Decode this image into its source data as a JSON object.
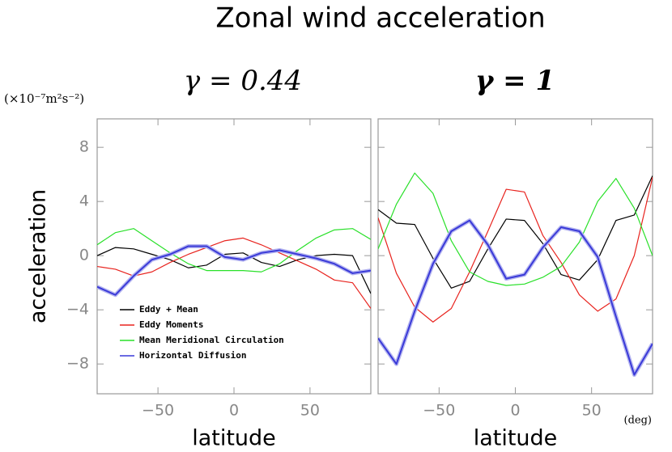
{
  "title": "Zonal wind acceleration",
  "unit_label": "(×10⁻⁷m²s⁻²)",
  "x_unit": "(deg)",
  "chart_data": [
    {
      "type": "line",
      "title": "γ = 0.44",
      "xlabel": "latitude",
      "ylabel": "acceleration",
      "x": [
        -90,
        -78,
        -66,
        -54,
        -42,
        -30,
        -18,
        -6,
        6,
        18,
        30,
        42,
        54,
        66,
        78,
        90
      ],
      "xlim": [
        -90,
        90
      ],
      "ylim": [
        -10.2,
        10.1
      ],
      "xticks": [
        {
          "value": -50,
          "label": "−50"
        },
        0,
        50
      ],
      "yticks": [
        {
          "value": -8,
          "label": "−8"
        },
        {
          "value": -4,
          "label": "−4"
        },
        0,
        4,
        8
      ],
      "legend": "lower left",
      "series": [
        {
          "name": "Eddy + Mean",
          "color": "#000000",
          "values": [
            0,
            0.6,
            0.5,
            0.1,
            -0.3,
            -0.9,
            -0.7,
            0.1,
            0.2,
            -0.5,
            -0.8,
            -0.3,
            0,
            0.1,
            0,
            -2.8
          ]
        },
        {
          "name": "Eddy Moments",
          "color": "#e8231e",
          "values": [
            -0.8,
            -1.0,
            -1.5,
            -1.2,
            -0.5,
            0.1,
            0.6,
            1.1,
            1.3,
            0.8,
            0.2,
            -0.4,
            -1.0,
            -1.8,
            -2.0,
            -3.9
          ]
        },
        {
          "name": "Mean Meridional Circulation",
          "color": "#29e029",
          "values": [
            0.8,
            1.7,
            2.0,
            1.1,
            0.2,
            -0.6,
            -1.1,
            -1.1,
            -1.1,
            -1.2,
            -0.6,
            0.4,
            1.3,
            1.9,
            2.0,
            1.2
          ]
        },
        {
          "name": "Horizontal Diffusion",
          "color": "#3a3ad8",
          "values": [
            -2.3,
            -2.9,
            -1.5,
            -0.3,
            0.1,
            0.7,
            0.7,
            -0.1,
            -0.3,
            0.2,
            0.4,
            0.1,
            -0.2,
            -0.6,
            -1.3,
            -1.1
          ]
        }
      ]
    },
    {
      "type": "line",
      "title": "γ = 1",
      "xlabel": "latitude",
      "x": [
        -90,
        -78,
        -66,
        -54,
        -42,
        -30,
        -18,
        -6,
        6,
        18,
        30,
        42,
        54,
        66,
        78,
        90
      ],
      "xlim": [
        -90,
        90
      ],
      "ylim": [
        -10.2,
        10.1
      ],
      "xticks": [
        {
          "value": -50,
          "label": "−50"
        },
        0,
        50
      ],
      "yticks": [
        -8,
        -4,
        0,
        4,
        8
      ],
      "series": [
        {
          "color": "#000000",
          "values": [
            3.4,
            2.4,
            2.3,
            -0.2,
            -2.4,
            -1.9,
            0.5,
            2.7,
            2.6,
            0.9,
            -1.4,
            -1.8,
            -0.3,
            2.6,
            3.0,
            5.9
          ]
        },
        {
          "color": "#e8231e",
          "values": [
            2.8,
            -1.3,
            -3.8,
            -4.9,
            -3.9,
            -1.2,
            1.8,
            4.9,
            4.7,
            1.5,
            -0.5,
            -2.9,
            -4.1,
            -3.2,
            0,
            5.8
          ]
        },
        {
          "color": "#29e029",
          "values": [
            0.5,
            3.8,
            6.1,
            4.6,
            1.1,
            -1.2,
            -1.9,
            -2.2,
            -2.1,
            -1.6,
            -0.8,
            1.0,
            4.0,
            5.7,
            3.5,
            0
          ]
        },
        {
          "color": "#3a3ad8",
          "values": [
            -6.1,
            -8.0,
            -4.1,
            -0.6,
            1.8,
            2.6,
            0.8,
            -1.7,
            -1.4,
            0.6,
            2.1,
            1.8,
            -0.1,
            -4.5,
            -8.8,
            -6.5
          ]
        }
      ]
    }
  ]
}
